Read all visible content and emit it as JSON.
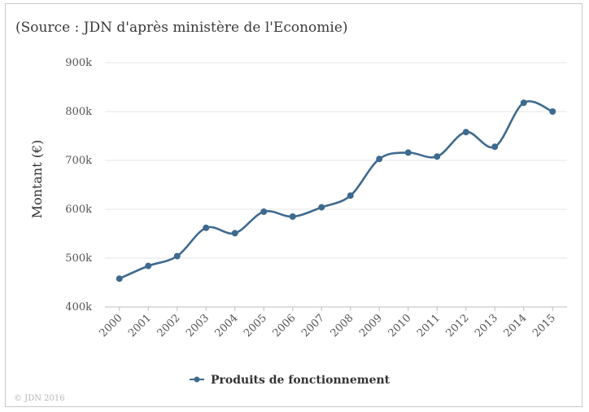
{
  "chart_data": {
    "type": "line",
    "source_note": "(Source : JDN d'après ministère de l'Economie)",
    "xlabel": "",
    "ylabel": "Montant (€)",
    "ylim": [
      400,
      900
    ],
    "yticks": [
      400,
      500,
      600,
      700,
      800,
      900
    ],
    "ytick_labels": [
      "400k",
      "500k",
      "600k",
      "700k",
      "800k",
      "900k"
    ],
    "categories": [
      "2000",
      "2001",
      "2002",
      "2003",
      "2004",
      "2005",
      "2006",
      "2007",
      "2008",
      "2009",
      "2010",
      "2011",
      "2012",
      "2013",
      "2014",
      "2015"
    ],
    "series": [
      {
        "name": "Produits de fonctionnement",
        "values": [
          458,
          484,
          504,
          562,
          551,
          595,
          585,
          604,
          628,
          703,
          716,
          708,
          758,
          728,
          818,
          800
        ],
        "color": "#3f6a8f"
      }
    ],
    "grid": true,
    "legend_position": "bottom",
    "credit": "© JDN 2016"
  }
}
